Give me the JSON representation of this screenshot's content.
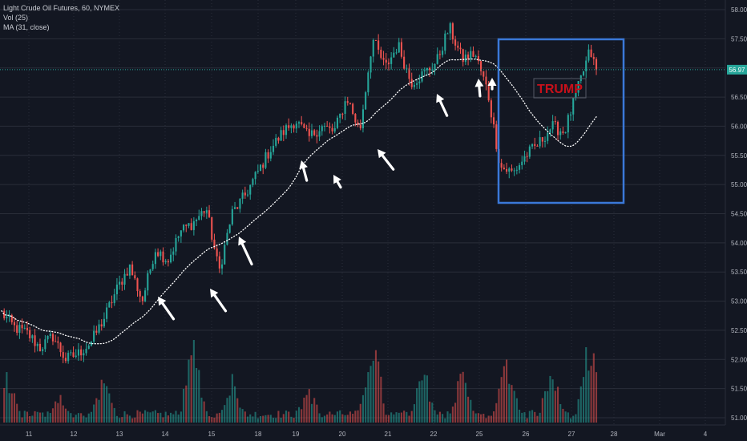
{
  "legend": {
    "symbol": "Light Crude Oil Futures, 60, NYMEX",
    "volume": "Vol (25)",
    "ma": "MA (31, close)"
  },
  "colors": {
    "background": "#131722",
    "grid": "#2a2e39",
    "up": "#26a69a",
    "down": "#ef5350",
    "ma_line": "#ffffff",
    "box": "#3a78d8",
    "annotation_text": "#c8101a",
    "price_badge": "#26a69a"
  },
  "chart_data": {
    "type": "candlestick",
    "symbol": "Light Crude Oil Futures",
    "interval": "60",
    "exchange": "NYMEX",
    "ylim": [
      50.85,
      58.1
    ],
    "y_ticks": [
      "51.00",
      "51.50",
      "52.00",
      "52.50",
      "53.00",
      "53.50",
      "54.00",
      "54.50",
      "55.00",
      "55.50",
      "56.00",
      "56.50",
      "57.00",
      "57.50",
      "58.00"
    ],
    "x_ticks": [
      "11",
      "12",
      "13",
      "14",
      "15",
      "18",
      "19",
      "20",
      "21",
      "22",
      "25",
      "26",
      "27",
      "28",
      "Mar",
      "4"
    ],
    "last_price": "56.97",
    "price_path": [
      [
        0,
        52.8
      ],
      [
        4,
        52.55
      ],
      [
        8,
        52.45
      ],
      [
        12,
        52.2
      ],
      [
        16,
        52.4
      ],
      [
        20,
        52.0
      ],
      [
        24,
        52.1
      ],
      [
        28,
        52.3
      ],
      [
        32,
        52.7
      ],
      [
        36,
        53.2
      ],
      [
        40,
        53.6
      ],
      [
        44,
        53.0
      ],
      [
        48,
        53.9
      ],
      [
        52,
        53.7
      ],
      [
        56,
        54.2
      ],
      [
        60,
        54.35
      ],
      [
        64,
        54.6
      ],
      [
        68,
        53.5
      ],
      [
        72,
        54.5
      ],
      [
        76,
        54.8
      ],
      [
        80,
        55.2
      ],
      [
        84,
        55.6
      ],
      [
        88,
        55.9
      ],
      [
        92,
        56.1
      ],
      [
        96,
        55.8
      ],
      [
        100,
        56.0
      ],
      [
        104,
        55.9
      ],
      [
        108,
        56.5
      ],
      [
        112,
        55.9
      ],
      [
        116,
        57.5
      ],
      [
        120,
        57.0
      ],
      [
        124,
        57.4
      ],
      [
        128,
        56.75
      ],
      [
        132,
        56.9
      ],
      [
        136,
        57.1
      ],
      [
        140,
        57.7
      ],
      [
        144,
        57.15
      ],
      [
        148,
        57.25
      ],
      [
        152,
        56.6
      ],
      [
        156,
        55.3
      ],
      [
        160,
        55.2
      ],
      [
        164,
        55.5
      ],
      [
        168,
        55.7
      ],
      [
        172,
        56.0
      ],
      [
        176,
        55.9
      ],
      [
        180,
        56.6
      ],
      [
        184,
        57.3
      ],
      [
        186,
        56.95
      ]
    ],
    "ma_period": 31,
    "volume_spikes": [
      {
        "bar": 2,
        "level": 0.55
      },
      {
        "bar": 18,
        "level": 0.35
      },
      {
        "bar": 32,
        "level": 0.5
      },
      {
        "bar": 60,
        "level": 0.9
      },
      {
        "bar": 72,
        "level": 0.5
      },
      {
        "bar": 96,
        "level": 0.4
      },
      {
        "bar": 116,
        "level": 1.0
      },
      {
        "bar": 132,
        "level": 0.6
      },
      {
        "bar": 144,
        "level": 0.55
      },
      {
        "bar": 158,
        "level": 0.72
      },
      {
        "bar": 172,
        "level": 0.6
      },
      {
        "bar": 184,
        "level": 0.98
      }
    ],
    "annotations": [
      {
        "type": "rectangle",
        "x_range": [
          154,
          186
        ],
        "y_range": [
          54.7,
          57.5
        ]
      },
      {
        "type": "label",
        "text": "TRUMP"
      },
      {
        "type": "arrow",
        "count": 8,
        "direction": "up"
      }
    ]
  }
}
